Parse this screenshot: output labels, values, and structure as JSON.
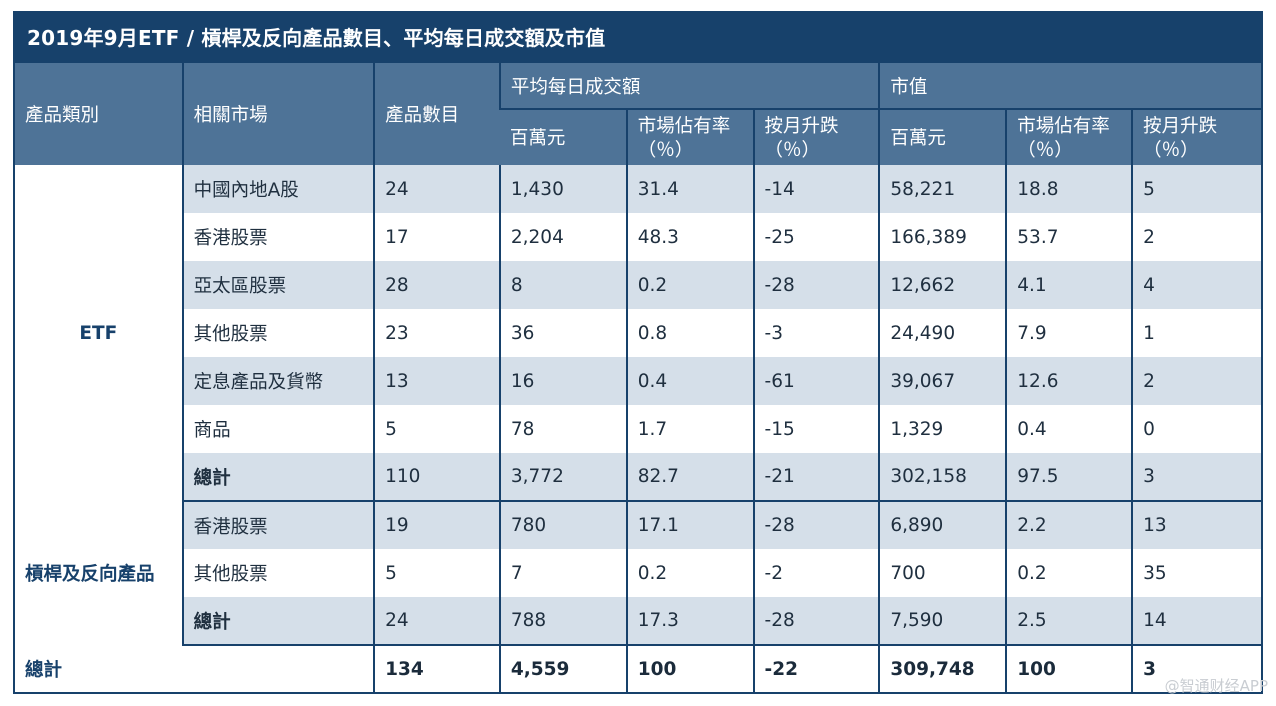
{
  "title": "2019年9月ETF / 槓桿及反向產品數目、平均每日成交額及市值",
  "headers": {
    "category": "產品類別",
    "market": "相關市場",
    "count": "產品數目",
    "adt": "平均每日成交額",
    "mcap": "市值",
    "sub_hkd": "百萬元",
    "sub_share": "市場佔有率（％）",
    "sub_mom": "按月升跌（％）"
  },
  "sections": [
    {
      "category": "ETF",
      "rows": [
        {
          "market": "中國內地A股",
          "count": "24",
          "adt": "1,430",
          "adt_share": "31.4",
          "adt_mom": "-14",
          "mcap": "58,221",
          "mcap_share": "18.8",
          "mcap_mom": "5"
        },
        {
          "market": "香港股票",
          "count": "17",
          "adt": "2,204",
          "adt_share": "48.3",
          "adt_mom": "-25",
          "mcap": "166,389",
          "mcap_share": "53.7",
          "mcap_mom": "2"
        },
        {
          "market": "亞太區股票",
          "count": "28",
          "adt": "8",
          "adt_share": "0.2",
          "adt_mom": "-28",
          "mcap": "12,662",
          "mcap_share": "4.1",
          "mcap_mom": "4"
        },
        {
          "market": "其他股票",
          "count": "23",
          "adt": "36",
          "adt_share": "0.8",
          "adt_mom": "-3",
          "mcap": "24,490",
          "mcap_share": "7.9",
          "mcap_mom": "1"
        },
        {
          "market": "定息產品及貨幣",
          "count": "13",
          "adt": "16",
          "adt_share": "0.4",
          "adt_mom": "-61",
          "mcap": "39,067",
          "mcap_share": "12.6",
          "mcap_mom": "2"
        },
        {
          "market": "商品",
          "count": "5",
          "adt": "78",
          "adt_share": "1.7",
          "adt_mom": "-15",
          "mcap": "1,329",
          "mcap_share": "0.4",
          "mcap_mom": "0"
        },
        {
          "market": "總計",
          "count": "110",
          "adt": "3,772",
          "adt_share": "82.7",
          "adt_mom": "-21",
          "mcap": "302,158",
          "mcap_share": "97.5",
          "mcap_mom": "3"
        }
      ]
    },
    {
      "category": "槓桿及反向產品",
      "rows": [
        {
          "market": "香港股票",
          "count": "19",
          "adt": "780",
          "adt_share": "17.1",
          "adt_mom": "-28",
          "mcap": "6,890",
          "mcap_share": "2.2",
          "mcap_mom": "13"
        },
        {
          "market": "其他股票",
          "count": "5",
          "adt": "7",
          "adt_share": "0.2",
          "adt_mom": "-2",
          "mcap": "700",
          "mcap_share": "0.2",
          "mcap_mom": "35"
        },
        {
          "market": "總計",
          "count": "24",
          "adt": "788",
          "adt_share": "17.3",
          "adt_mom": "-28",
          "mcap": "7,590",
          "mcap_share": "2.5",
          "mcap_mom": "14"
        }
      ]
    }
  ],
  "grand_total": {
    "label": "總計",
    "count": "134",
    "adt": "4,559",
    "adt_share": "100",
    "adt_mom": "-22",
    "mcap": "309,748",
    "mcap_share": "100",
    "mcap_mom": "3"
  },
  "watermark": "@智通财经APP"
}
